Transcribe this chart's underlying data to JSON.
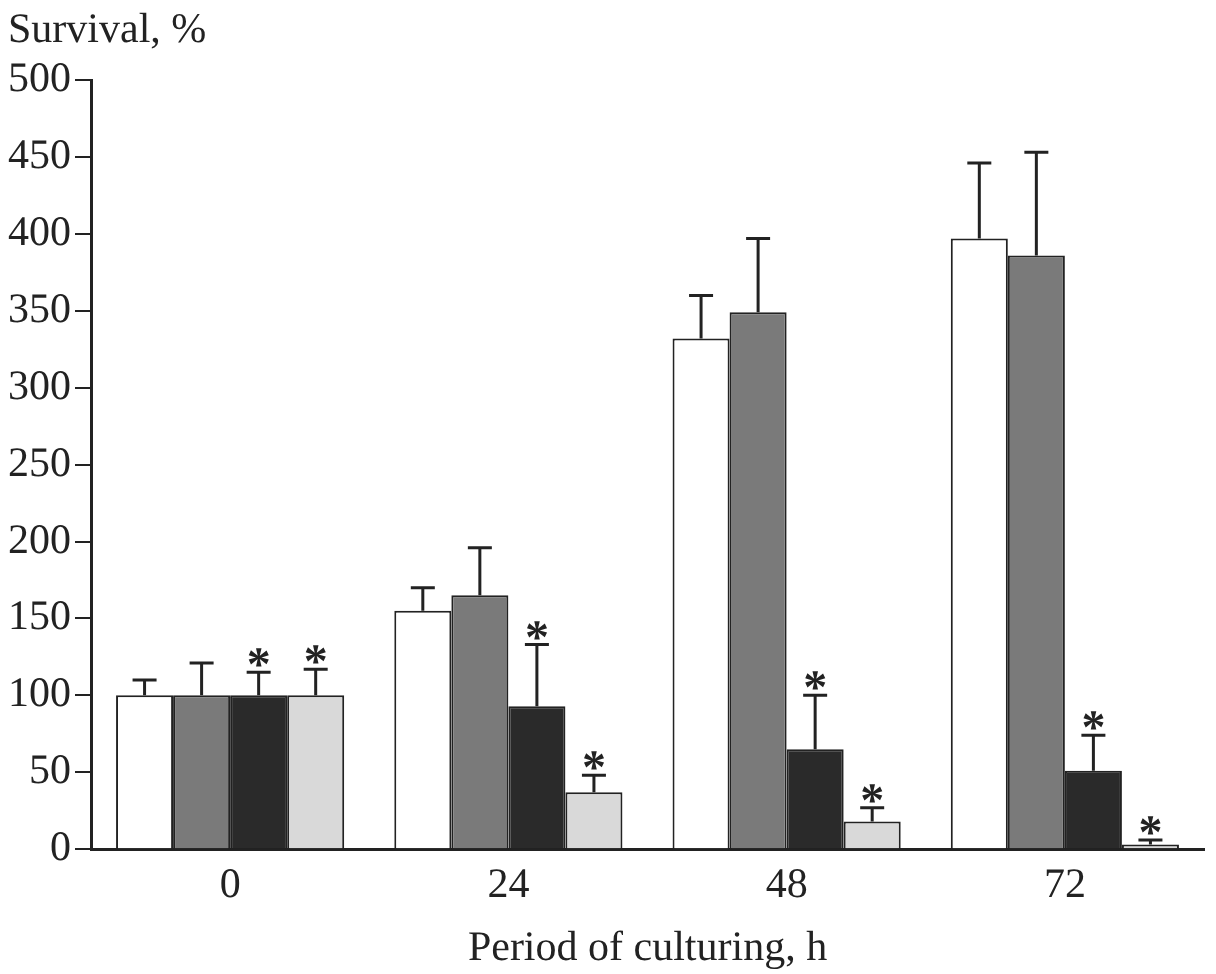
{
  "chart_data": {
    "type": "bar",
    "ylabel": "Survival, %",
    "xlabel": "Period of culturing, h",
    "categories": [
      "0",
      "24",
      "48",
      "72"
    ],
    "series": [
      {
        "color": "#ffffff",
        "values": [
          100,
          155,
          332,
          397
        ],
        "errors": [
          10,
          15,
          28,
          49
        ]
      },
      {
        "color": "#7a7a7a",
        "values": [
          100,
          165,
          349,
          386
        ],
        "errors": [
          21,
          31,
          48,
          67
        ]
      },
      {
        "color": "#2a2a2a",
        "values": [
          100,
          93,
          65,
          51
        ],
        "errors": [
          15,
          40,
          35,
          23
        ],
        "value_labels": [
          "*",
          "*",
          "*",
          "*"
        ]
      },
      {
        "color": "#d9d9d9",
        "values": [
          100,
          37,
          18,
          3
        ],
        "errors": [
          17,
          11,
          9,
          3
        ],
        "value_labels": [
          "*",
          "*",
          "*",
          "*"
        ]
      }
    ],
    "ylim": [
      0,
      500
    ],
    "yticks": [
      0,
      50,
      100,
      150,
      200,
      250,
      300,
      350,
      400,
      450,
      500
    ],
    "grid": false,
    "legend": false
  }
}
